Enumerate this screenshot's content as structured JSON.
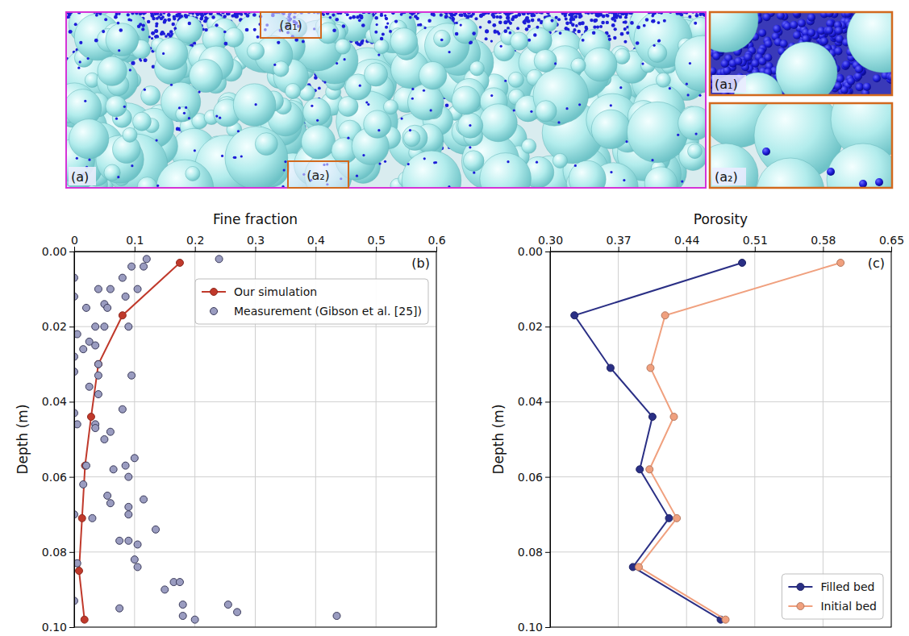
{
  "image_panel": {
    "label": "(a)",
    "inset_labels": [
      "(a₁)",
      "(a₂)"
    ]
  },
  "chart_data": [
    {
      "type": "line",
      "x_label": "Fine fraction",
      "y_label": "Depth (m)",
      "annotations": [
        "(b)"
      ],
      "xlim": [
        0,
        0.6
      ],
      "xticks": [
        0,
        0.1,
        0.2,
        0.3,
        0.4,
        0.5,
        0.6
      ],
      "ylim": [
        0,
        0.1
      ],
      "yticks": [
        {
          "value": 0,
          "label": "0.00"
        },
        0.02,
        0.04,
        0.06,
        0.08,
        {
          "value": 0.1,
          "label": "0.10"
        }
      ],
      "grid": true,
      "legend": "upper right",
      "series": [
        {
          "name": "Our simulation",
          "type": "line",
          "color": "#c0392b",
          "marker": "o",
          "line_style": "solid",
          "x": [
            0.175,
            0.08,
            0.04,
            0.028,
            0.018,
            0.013,
            0.008,
            0.017
          ],
          "values": [
            0.003,
            0.017,
            0.03,
            0.044,
            0.057,
            0.071,
            0.085,
            0.098
          ]
        },
        {
          "name": "Measurement (Gibson et al. [25])",
          "type": "scatter",
          "color": "#9a9cc0",
          "marker": "o",
          "x": [
            0.24,
            0.12,
            0.115,
            0.095,
            0.08,
            0.0,
            0.105,
            0.06,
            0.04,
            0.0,
            0.085,
            0.05,
            0.055,
            0.02,
            0.09,
            0.05,
            0.035,
            0.005,
            0.025,
            0.035,
            0.015,
            0.0,
            0.04,
            0.0,
            0.04,
            0.095,
            0.025,
            0.04,
            0.0,
            0.08,
            0.005,
            0.035,
            0.035,
            0.06,
            0.05,
            0.1,
            0.02,
            0.065,
            0.085,
            0.015,
            0.09,
            0.115,
            0.055,
            0.06,
            0.09,
            0.09,
            0.0,
            0.03,
            0.135,
            0.075,
            0.09,
            0.105,
            0.1,
            0.105,
            0.005,
            0.165,
            0.175,
            0.15,
            0.0,
            0.255,
            0.18,
            0.27,
            0.075,
            0.18,
            0.2,
            0.435
          ],
          "values": [
            0.002,
            0.002,
            0.004,
            0.004,
            0.007,
            0.007,
            0.01,
            0.01,
            0.01,
            0.012,
            0.012,
            0.014,
            0.015,
            0.015,
            0.02,
            0.02,
            0.02,
            0.022,
            0.024,
            0.025,
            0.026,
            0.028,
            0.03,
            0.032,
            0.033,
            0.033,
            0.036,
            0.038,
            0.043,
            0.042,
            0.046,
            0.046,
            0.047,
            0.048,
            0.05,
            0.055,
            0.057,
            0.058,
            0.057,
            0.062,
            0.06,
            0.066,
            0.065,
            0.067,
            0.068,
            0.07,
            0.07,
            0.071,
            0.074,
            0.077,
            0.077,
            0.078,
            0.082,
            0.084,
            0.083,
            0.088,
            0.088,
            0.09,
            0.093,
            0.094,
            0.094,
            0.096,
            0.095,
            0.097,
            0.098,
            0.097
          ]
        }
      ]
    },
    {
      "type": "line",
      "x_label": "Porosity",
      "y_label": "Depth (m)",
      "annotations": [
        "(c)"
      ],
      "xlim": [
        0.3,
        0.65
      ],
      "xticks": [
        {
          "value": 0.3,
          "label": "0.30"
        },
        0.37,
        0.44,
        0.51,
        0.58,
        0.65
      ],
      "ylim": [
        0,
        0.1
      ],
      "yticks": [
        {
          "value": 0,
          "label": "0.00"
        },
        0.02,
        0.04,
        0.06,
        0.08,
        {
          "value": 0.1,
          "label": "0.10"
        }
      ],
      "grid": true,
      "legend": "lower right",
      "series": [
        {
          "name": "Filled bed",
          "type": "line",
          "color": "#2a2f85",
          "marker": "o",
          "line_style": "solid",
          "x": [
            0.497,
            0.325,
            0.362,
            0.405,
            0.392,
            0.422,
            0.385,
            0.475
          ],
          "values": [
            0.003,
            0.017,
            0.031,
            0.044,
            0.058,
            0.071,
            0.084,
            0.098
          ]
        },
        {
          "name": "Initial bed",
          "type": "line",
          "color": "#f0a07e",
          "marker": "o",
          "line_style": "solid",
          "x": [
            0.598,
            0.418,
            0.403,
            0.427,
            0.402,
            0.43,
            0.391,
            0.48
          ],
          "values": [
            0.003,
            0.017,
            0.031,
            0.044,
            0.058,
            0.071,
            0.084,
            0.098
          ]
        }
      ]
    }
  ]
}
